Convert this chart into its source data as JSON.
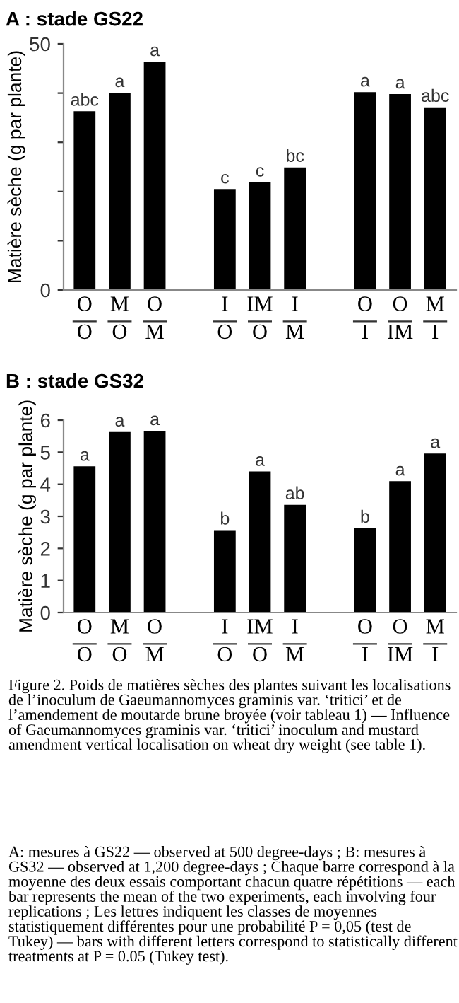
{
  "chart_data": [
    {
      "type": "bar",
      "title": "A : stade GS22",
      "ylabel": "Matière sèche (g par plante)",
      "categories": [
        "O\nO",
        "M\nO",
        "O\nM",
        null,
        "I\nO",
        "IM\nO",
        "I\nM",
        null,
        "O\nI",
        "O\nIM",
        "M\nI"
      ],
      "values": [
        36.3,
        40.1,
        46.4,
        null,
        20.5,
        21.9,
        24.9,
        null,
        40.2,
        39.8,
        37.1
      ],
      "value_labels": [
        "abc",
        "a",
        "a",
        null,
        "c",
        "c",
        "bc",
        null,
        "a",
        "a",
        "abc"
      ],
      "color": "#000000",
      "ylim": [
        0,
        50
      ],
      "yticks": [
        0,
        {
          "value": 10,
          "label": null
        },
        {
          "value": 20,
          "label": null
        },
        {
          "value": 30,
          "label": null
        },
        {
          "value": 40,
          "label": null
        },
        50
      ],
      "grid": false,
      "legend": false
    },
    {
      "type": "bar",
      "title": "B : stade GS32",
      "ylabel": "Matière sèche (g par plante)",
      "categories": [
        "O\nO",
        "M\nO",
        "O\nM",
        null,
        "I\nO",
        "IM\nO",
        "I\nM",
        null,
        "O\nI",
        "O\nIM",
        "M\nI"
      ],
      "values": [
        4.56,
        5.63,
        5.67,
        null,
        2.57,
        4.4,
        3.36,
        null,
        2.63,
        4.1,
        4.96
      ],
      "value_labels": [
        "a",
        "a",
        "a",
        null,
        "b",
        "a",
        "ab",
        null,
        "b",
        "a",
        "a"
      ],
      "color": "#000000",
      "ylim": [
        0,
        6
      ],
      "yticks": [
        0,
        1,
        2,
        3,
        4,
        5,
        6
      ],
      "grid": false,
      "legend": false,
      "annotations": [
        "Figure 2. Poids de matières sèches des plantes suivant les localisations de l’inoculum de Gaeumannomyces graminis var. ‘tritici’ et de l’amendement de moutarde brune broyée (voir tableau 1) — Influence of Gaeumannomyces graminis var. ‘tritici’ inoculum and mustard amendment vertical localisation on wheat dry weight (see table 1).",
        "A: mesures à GS22 — observed at 500 degree-days ; B: mesures à GS32 — observed at 1,200 degree-days ; Chaque barre correspond à la moyenne des deux essais comportant chacun quatre répétitions — each bar represents the mean of the two experiments, each involving four replications ; Les lettres indiquent les classes de moyennes statistiquement différentes pour une probabilité P = 0,05 (test de Tukey) — bars with different letters correspond to statistically different treatments at P = 0.05 (Tukey test)."
      ]
    }
  ]
}
